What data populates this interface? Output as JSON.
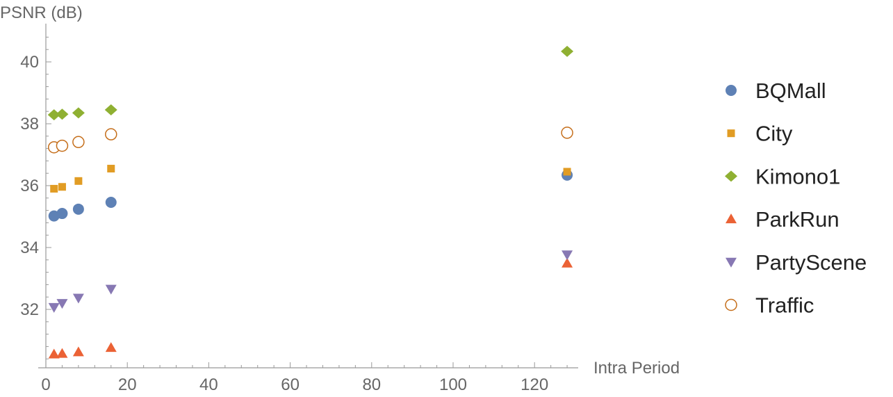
{
  "chart_data": {
    "type": "scatter",
    "xlabel": "Intra Period",
    "ylabel": "PSNR (dB)",
    "xlim": [
      0,
      130
    ],
    "ylim": [
      30.4,
      41
    ],
    "x_ticks": [
      0,
      20,
      40,
      60,
      80,
      100,
      120
    ],
    "y_ticks": [
      32,
      34,
      36,
      38,
      40
    ],
    "legend_position": "right",
    "series": [
      {
        "name": "BQMall",
        "marker": "circle",
        "color": "#5E81B5",
        "points": [
          [
            2,
            35.02
          ],
          [
            4,
            35.1
          ],
          [
            8,
            35.24
          ],
          [
            16,
            35.46
          ],
          [
            128,
            36.34
          ]
        ]
      },
      {
        "name": "City",
        "marker": "square",
        "color": "#E19C24",
        "points": [
          [
            2,
            35.9
          ],
          [
            4,
            35.96
          ],
          [
            8,
            36.15
          ],
          [
            16,
            36.55
          ],
          [
            128,
            36.45
          ]
        ]
      },
      {
        "name": "Kimono1",
        "marker": "diamond",
        "color": "#8FB032",
        "points": [
          [
            2,
            38.29
          ],
          [
            4,
            38.31
          ],
          [
            8,
            38.35
          ],
          [
            16,
            38.45
          ],
          [
            128,
            40.34
          ]
        ]
      },
      {
        "name": "ParkRun",
        "marker": "triangle-up",
        "color": "#EB6235",
        "points": [
          [
            2,
            30.55
          ],
          [
            4,
            30.57
          ],
          [
            8,
            30.62
          ],
          [
            16,
            30.76
          ],
          [
            128,
            33.49
          ]
        ]
      },
      {
        "name": "PartyScene",
        "marker": "triangle-down",
        "color": "#8778B3",
        "points": [
          [
            2,
            32.07
          ],
          [
            4,
            32.2
          ],
          [
            8,
            32.37
          ],
          [
            16,
            32.66
          ],
          [
            128,
            33.77
          ]
        ]
      },
      {
        "name": "Traffic",
        "marker": "open-circle",
        "color": "#C56E1A",
        "points": [
          [
            2,
            37.24
          ],
          [
            4,
            37.29
          ],
          [
            8,
            37.41
          ],
          [
            16,
            37.66
          ],
          [
            128,
            37.71
          ]
        ]
      }
    ]
  }
}
